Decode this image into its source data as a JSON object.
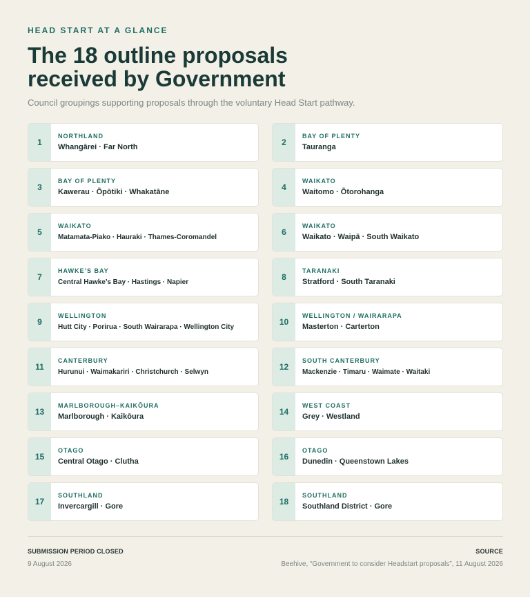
{
  "header": {
    "eyebrow": "HEAD START AT A GLANCE",
    "title_line1": "The 18 outline proposals",
    "title_line2": "received by Government",
    "subtitle": "Council groupings supporting proposals through the voluntary Head Start pathway."
  },
  "proposals": [
    {
      "num": "1",
      "region": "NORTHLAND",
      "councils": "Whangārei · Far North"
    },
    {
      "num": "2",
      "region": "BAY OF PLENTY",
      "councils": "Tauranga"
    },
    {
      "num": "3",
      "region": "BAY OF PLENTY",
      "councils": "Kawerau · Ōpōtiki · Whakatāne"
    },
    {
      "num": "4",
      "region": "WAIKATO",
      "councils": "Waitomo · Ōtorohanga"
    },
    {
      "num": "5",
      "region": "WAIKATO",
      "councils": "Matamata-Piako · Hauraki · Thames-Coromandel"
    },
    {
      "num": "6",
      "region": "WAIKATO",
      "councils": "Waikato · Waipā · South Waikato"
    },
    {
      "num": "7",
      "region": "HAWKE’S BAY",
      "councils": "Central Hawke’s Bay · Hastings · Napier"
    },
    {
      "num": "8",
      "region": "TARANAKI",
      "councils": "Stratford · South Taranaki"
    },
    {
      "num": "9",
      "region": "WELLINGTON",
      "councils": "Hutt City · Porirua · South Wairarapa · Wellington City"
    },
    {
      "num": "10",
      "region": "WELLINGTON / WAIRARAPA",
      "councils": "Masterton · Carterton"
    },
    {
      "num": "11",
      "region": "CANTERBURY",
      "councils": "Hurunui · Waimakariri · Christchurch · Selwyn"
    },
    {
      "num": "12",
      "region": "SOUTH CANTERBURY",
      "councils": "Mackenzie · Timaru · Waimate · Waitaki"
    },
    {
      "num": "13",
      "region": "MARLBOROUGH–KAIKŌURA",
      "councils": "Marlborough · Kaikōura"
    },
    {
      "num": "14",
      "region": "WEST COAST",
      "councils": "Grey · Westland"
    },
    {
      "num": "15",
      "region": "OTAGO",
      "councils": "Central Otago · Clutha"
    },
    {
      "num": "16",
      "region": "OTAGO",
      "councils": "Dunedin · Queenstown Lakes"
    },
    {
      "num": "17",
      "region": "SOUTHLAND",
      "councils": "Invercargill · Gore"
    },
    {
      "num": "18",
      "region": "SOUTHLAND",
      "councils": "Southland District · Gore"
    }
  ],
  "footer": {
    "left_label": "SUBMISSION PERIOD CLOSED",
    "left_value": "9 August 2026",
    "right_label": "SOURCE",
    "right_value": "Beehive, “Government to consider Headstart proposals”, 11 August 2026"
  }
}
